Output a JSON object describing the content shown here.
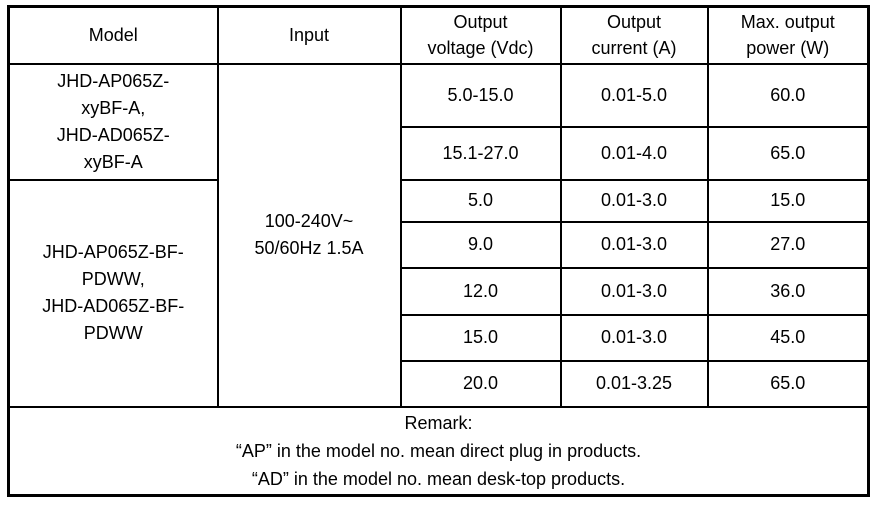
{
  "colors": {
    "border": "#000000",
    "text": "#000000",
    "background": "#ffffff"
  },
  "table": {
    "headers": {
      "model": "Model",
      "input": "Input",
      "output_voltage": [
        "Output",
        "voltage (Vdc)"
      ],
      "output_current": [
        "Output",
        "current (A)"
      ],
      "max_output_power": [
        "Max. output",
        "power (W)"
      ]
    },
    "model_groups": [
      {
        "lines": [
          "JHD-AP065Z-",
          "xyBF-A,",
          "JHD-AD065Z-",
          "xyBF-A"
        ]
      },
      {
        "lines": [
          "JHD-AP065Z-BF-",
          "PDWW,",
          "JHD-AD065Z-BF-",
          "PDWW"
        ]
      }
    ],
    "input_value": {
      "lines": [
        "100-240V~",
        "50/60Hz 1.5A"
      ]
    },
    "rows": [
      {
        "voltage": "5.0-15.0",
        "current": "0.01-5.0",
        "power": "60.0"
      },
      {
        "voltage": "15.1-27.0",
        "current": "0.01-4.0",
        "power": "65.0"
      },
      {
        "voltage": "5.0",
        "current": "0.01-3.0",
        "power": "15.0"
      },
      {
        "voltage": "9.0",
        "current": "0.01-3.0",
        "power": "27.0"
      },
      {
        "voltage": "12.0",
        "current": "0.01-3.0",
        "power": "36.0"
      },
      {
        "voltage": "15.0",
        "current": "0.01-3.0",
        "power": "45.0"
      },
      {
        "voltage": "20.0",
        "current": "0.01-3.25",
        "power": "65.0"
      }
    ],
    "remark": {
      "lines": [
        "Remark:",
        "“AP” in the model no. mean direct plug in products.",
        "“AD” in the model no. mean desk-top products."
      ]
    }
  }
}
